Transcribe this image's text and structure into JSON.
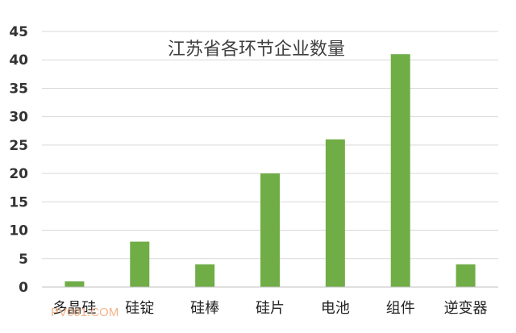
{
  "chart_data": {
    "type": "bar",
    "title": "江苏省各环节企业数量",
    "xlabel": "",
    "ylabel": "",
    "categories": [
      "多晶硅",
      "硅锭",
      "硅棒",
      "硅片",
      "电池",
      "组件",
      "逆变器"
    ],
    "values": [
      1,
      8,
      4,
      20,
      26,
      41,
      4
    ],
    "ylim": [
      0,
      45
    ],
    "yticks": [
      0,
      5,
      10,
      15,
      20,
      25,
      30,
      35,
      40,
      45
    ],
    "grid": true,
    "legend": "none",
    "colors": {
      "bar": "#70ad47",
      "grid": "#d9d9d9",
      "axis": "#bfbfbf"
    }
  },
  "watermark": "PV001.COM"
}
